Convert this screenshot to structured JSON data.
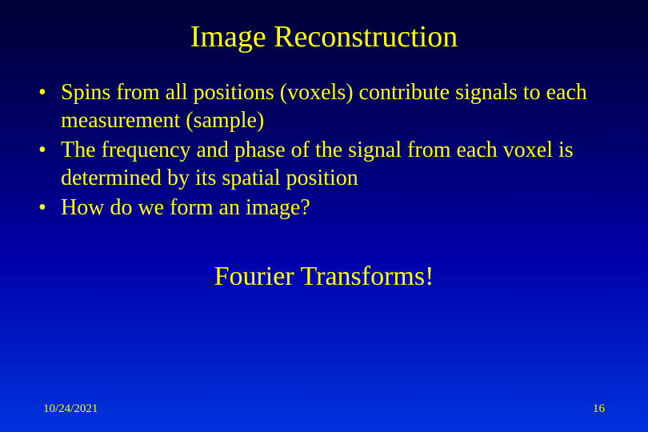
{
  "slide": {
    "title": "Image Reconstruction",
    "bullets": [
      "Spins from all positions (voxels) contribute signals to each measurement (sample)",
      "The frequency and phase of the signal from each voxel is determined by its spatial position",
      "How do we form an image?"
    ],
    "centered_text": "Fourier Transforms!",
    "footer": {
      "date": "10/24/2021",
      "page_number": "16"
    },
    "style": {
      "background_gradient_top": "#000033",
      "background_gradient_bottom": "#0033dd",
      "text_color": "#ffff00",
      "title_fontsize_pt": 28,
      "body_fontsize_pt": 21,
      "centered_fontsize_pt": 25,
      "footer_fontsize_pt": 11,
      "font_family": "Times New Roman"
    }
  }
}
